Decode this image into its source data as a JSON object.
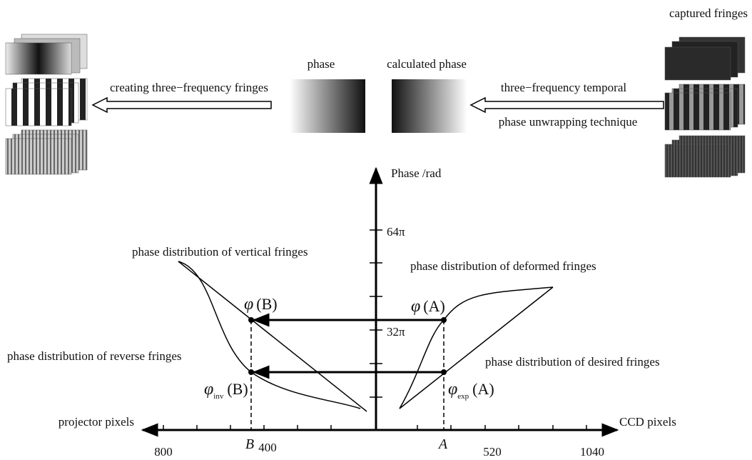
{
  "top": {
    "captured_fringes": "captured fringes",
    "phase": "phase",
    "calculated_phase": "calculated phase",
    "left_arrow_label": "creating three−frequency fringes",
    "right_arrow_label_1": "three−frequency temporal",
    "right_arrow_label_2": "phase unwrapping technique"
  },
  "axes": {
    "y_label": "Phase /rad",
    "x_left_label": "projector pixels",
    "x_right_label": "CCD pixels",
    "y_ticks": [
      "64π",
      "32π"
    ],
    "x_ticks_left": [
      "800",
      "400"
    ],
    "x_ticks_right": [
      "520",
      "1040"
    ],
    "point_labels": [
      "B",
      "A"
    ]
  },
  "curves": {
    "vertical": "phase distribution of vertical fringes",
    "deformed": "phase distribution of deformed fringes",
    "reverse": "phase distribution of reverse fringes",
    "desired": "phase distribution of desired fringes"
  },
  "points": {
    "phi_B": {
      "symbol": "φ",
      "argument": "(B)"
    },
    "phi_A": {
      "symbol": "φ",
      "argument": "(A)"
    },
    "phi_inv_B": {
      "symbol": "φ",
      "subscript": "inv",
      "argument": "(B)"
    },
    "phi_exp_A": {
      "symbol": "φ",
      "subscript": "exp",
      "argument": "(A)"
    }
  }
}
